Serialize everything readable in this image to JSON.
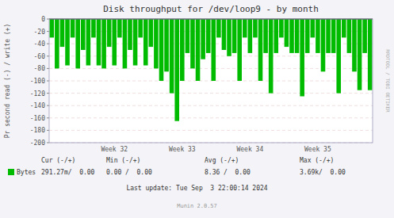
{
  "chart_data": {
    "type": "bar",
    "title": "Disk throughput for /dev/loop9 - by month",
    "y_label": "Pr second read (-) / write (+)",
    "categories": [
      null,
      null,
      null,
      null,
      null,
      null,
      null,
      null,
      null,
      null,
      null,
      null,
      "Week 32",
      null,
      null,
      null,
      null,
      null,
      null,
      null,
      null,
      null,
      null,
      null,
      null,
      "Week 33",
      null,
      null,
      null,
      null,
      null,
      null,
      null,
      null,
      null,
      null,
      null,
      null,
      "Week 34",
      null,
      null,
      null,
      null,
      null,
      null,
      null,
      null,
      null,
      null,
      null,
      null,
      "Week 35",
      null,
      null,
      null,
      null,
      null,
      null,
      null,
      null,
      null,
      null
    ],
    "series": [
      {
        "name": "Bytes",
        "color": "#00bb00",
        "values": [
          -30,
          -80,
          -45,
          -75,
          -30,
          -80,
          -50,
          -75,
          -30,
          -75,
          -80,
          -45,
          -75,
          -30,
          -80,
          -50,
          -75,
          -30,
          -75,
          -45,
          -80,
          -100,
          -85,
          -120,
          -165,
          -100,
          -55,
          -80,
          -100,
          -65,
          -55,
          -100,
          -30,
          -50,
          -60,
          -55,
          -100,
          -30,
          -55,
          -30,
          -100,
          -55,
          -120,
          -55,
          -30,
          -45,
          -55,
          -55,
          -125,
          -55,
          -30,
          -55,
          -85,
          -55,
          -55,
          -120,
          -30,
          -55,
          -85,
          -115,
          -55,
          -115
        ]
      }
    ],
    "ylim": [
      -200,
      0
    ],
    "yticks": [
      0,
      -20,
      -40,
      -60,
      -80,
      -100,
      -120,
      -140,
      -160,
      -180,
      -200
    ],
    "grid": true,
    "annotations": [
      "Cur (-/+)",
      "Min (-/+)",
      "Avg (-/+)",
      "Max (-/+)",
      "291.27m/  0.00",
      "0.00 /  0.00",
      "8.36 /  0.00",
      "3.69k/  0.00",
      "Last update: Tue Sep  3 22:00:14 2024",
      "Munin 2.0.57",
      "RRDTOOL / TOBI OETIKER"
    ]
  }
}
